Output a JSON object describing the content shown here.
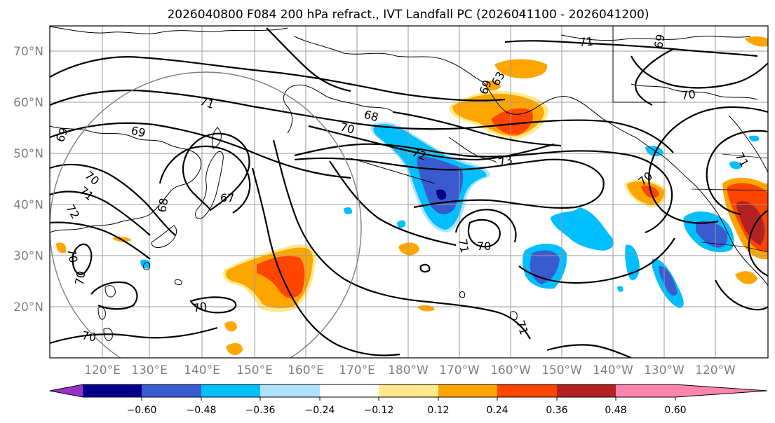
{
  "title": "2026040800 F084 200 hPa refract., IVT Landfall PC (2026041100 - 2026041200)",
  "latitude_labels": [
    "70°N",
    "60°N",
    "50°N",
    "40°N",
    "30°N",
    "20°N"
  ],
  "longitude_labels": [
    "120°E",
    "130°E",
    "140°E",
    "150°E",
    "160°E",
    "170°E",
    "180°W",
    "170°W",
    "160°W",
    "150°W",
    "140°W",
    "130°W",
    "120°W"
  ],
  "colorbar": {
    "tick_labels": [
      "−0.60",
      "−0.48",
      "−0.36",
      "−0.24",
      "−0.12",
      "0.12",
      "0.24",
      "0.36",
      "0.48",
      "0.60"
    ],
    "colors": [
      "#9932cc",
      "#00008b",
      "#3a5bd0",
      "#00bfff",
      "#b0e2ff",
      "#ffffff",
      "#ffe98a",
      "#ffa500",
      "#ff4500",
      "#b22222",
      "#ff85b0"
    ]
  },
  "contour_labels": {
    "l71_nw": "71",
    "l71_ne": "71",
    "l70_ne": "70",
    "l69_nw": "69",
    "l69_w": "69",
    "l70_w": "70",
    "l71_w": "71",
    "l72_w": "72",
    "l68_mid": "68",
    "l67_mid": "67",
    "l68_n": "68",
    "l70_n": "70",
    "l72_c": "72",
    "l73_c": "73",
    "l69_ak": "69",
    "l63_ak": "63",
    "l70_e": "70",
    "l71_far_e": "71",
    "l71_c": "71",
    "l70_c": "70",
    "l69_sw": "69",
    "l70_sw": "70",
    "l70_s": "70",
    "l70_bl": "70",
    "l71_s": "71",
    "l70_sw2": "70"
  }
}
